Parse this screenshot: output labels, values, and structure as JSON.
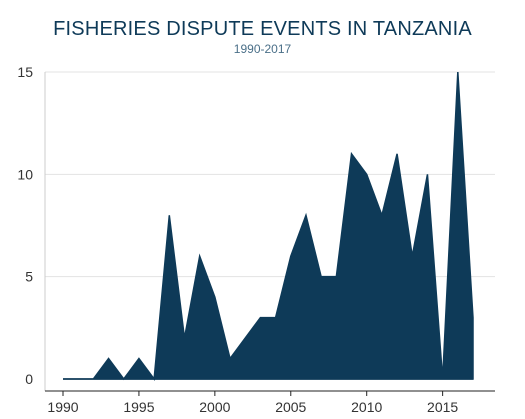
{
  "chart_data": {
    "type": "area",
    "title": "FISHERIES DISPUTE EVENTS IN TANZANIA",
    "subtitle": "1990-2017",
    "xlabel": "",
    "ylabel": "",
    "x": [
      1990,
      1991,
      1992,
      1993,
      1994,
      1995,
      1996,
      1997,
      1998,
      1999,
      2000,
      2001,
      2002,
      2003,
      2004,
      2005,
      2006,
      2007,
      2008,
      2009,
      2010,
      2011,
      2012,
      2013,
      2014,
      2015,
      2016,
      2017
    ],
    "values": [
      0,
      0,
      0,
      1,
      0,
      1,
      0,
      8,
      2,
      6,
      4,
      1,
      2,
      3,
      3,
      6,
      8,
      5,
      5,
      11,
      10,
      8,
      11,
      6,
      10,
      0,
      15,
      3
    ],
    "xlim": [
      1990,
      2017
    ],
    "ylim": [
      0,
      15
    ],
    "x_ticks": [
      1990,
      1995,
      2000,
      2005,
      2010,
      2015
    ],
    "y_ticks": [
      0,
      5,
      10,
      15
    ],
    "grid": true,
    "legend": "none",
    "colors": {
      "fill": "#0e3a58",
      "grid": "#e3e3e3",
      "text": "#333333",
      "title": "#0e3a58"
    }
  }
}
